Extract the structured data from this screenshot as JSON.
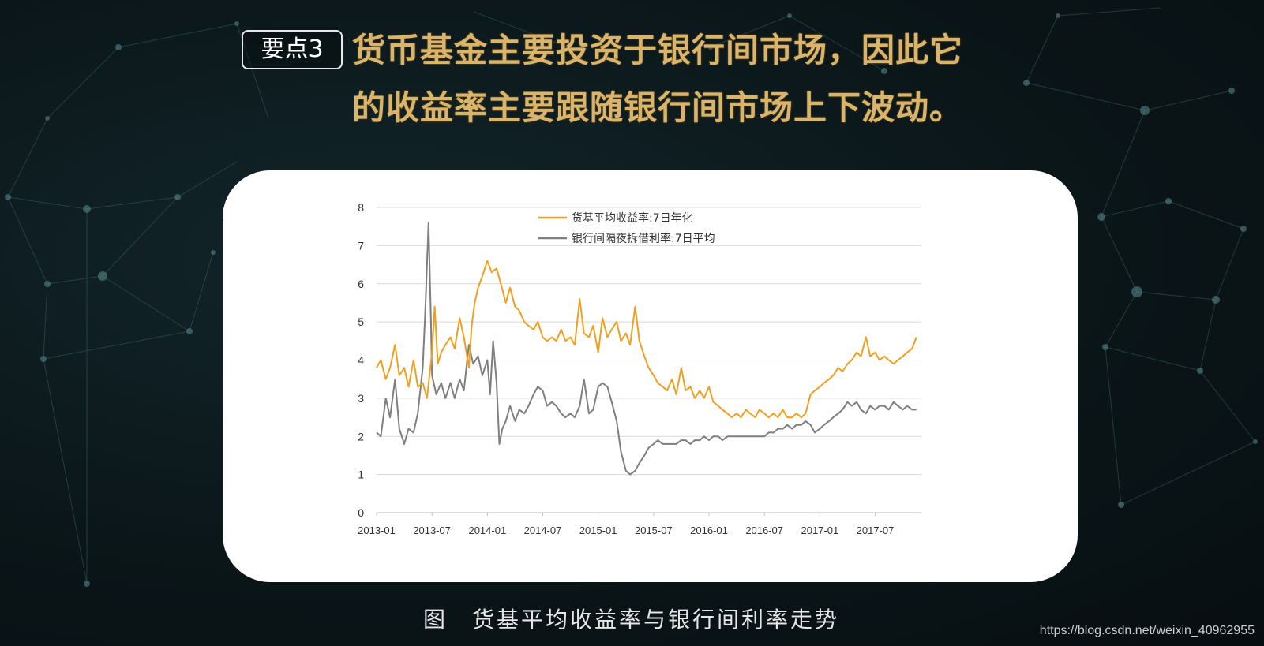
{
  "badge": "要点3",
  "headline": {
    "line1": "货币基金主要投资于银行间市场，因此它",
    "line2": "的收益率主要跟随银行间市场上下波动。"
  },
  "caption": "图　货基平均收益率与银行间利率走势",
  "watermark": "https://blog.csdn.net/weixin_40962955",
  "colors": {
    "headline": "#d9b46a",
    "series_fund": "#f0a020",
    "series_interbank": "#7f7f7f"
  },
  "chart_data": {
    "type": "line",
    "title": "",
    "xlabel": "",
    "ylabel": "",
    "ylim": [
      0,
      8
    ],
    "yticks": [
      "0",
      "1",
      "2",
      "3",
      "4",
      "5",
      "6",
      "7",
      "8"
    ],
    "xlim": [
      "2013-01",
      "2017-12"
    ],
    "xticks": [
      "2013-01",
      "2013-07",
      "2014-01",
      "2014-07",
      "2015-01",
      "2015-07",
      "2016-01",
      "2016-07",
      "2017-01",
      "2017-07"
    ],
    "grid": true,
    "legend": "top-center",
    "series": [
      {
        "name": "货基平均收益率:7日年化",
        "color": "#f0a020",
        "points": [
          [
            "2013-01",
            3.8
          ],
          [
            "2013-01-15",
            4.0
          ],
          [
            "2013-02",
            3.5
          ],
          [
            "2013-02-15",
            3.8
          ],
          [
            "2013-03",
            4.4
          ],
          [
            "2013-03-15",
            3.6
          ],
          [
            "2013-04",
            3.8
          ],
          [
            "2013-04-15",
            3.3
          ],
          [
            "2013-05",
            4.0
          ],
          [
            "2013-05-15",
            3.3
          ],
          [
            "2013-06",
            3.4
          ],
          [
            "2013-06-15",
            3.0
          ],
          [
            "2013-07",
            4.2
          ],
          [
            "2013-07-10",
            5.4
          ],
          [
            "2013-07-20",
            3.9
          ],
          [
            "2013-08",
            4.2
          ],
          [
            "2013-08-15",
            4.4
          ],
          [
            "2013-09",
            4.6
          ],
          [
            "2013-09-15",
            4.3
          ],
          [
            "2013-10",
            5.1
          ],
          [
            "2013-10-15",
            4.6
          ],
          [
            "2013-11",
            3.8
          ],
          [
            "2013-11-10",
            4.9
          ],
          [
            "2013-11-20",
            5.5
          ],
          [
            "2013-12",
            5.9
          ],
          [
            "2013-12-15",
            6.2
          ],
          [
            "2014-01",
            6.6
          ],
          [
            "2014-01-15",
            6.3
          ],
          [
            "2014-02",
            6.4
          ],
          [
            "2014-02-15",
            6.0
          ],
          [
            "2014-03",
            5.5
          ],
          [
            "2014-03-15",
            5.9
          ],
          [
            "2014-04",
            5.4
          ],
          [
            "2014-04-15",
            5.3
          ],
          [
            "2014-05",
            5.0
          ],
          [
            "2014-05-15",
            4.9
          ],
          [
            "2014-06",
            4.8
          ],
          [
            "2014-06-15",
            5.0
          ],
          [
            "2014-07",
            4.6
          ],
          [
            "2014-07-15",
            4.5
          ],
          [
            "2014-08",
            4.6
          ],
          [
            "2014-08-15",
            4.5
          ],
          [
            "2014-09",
            4.8
          ],
          [
            "2014-09-15",
            4.5
          ],
          [
            "2014-10",
            4.6
          ],
          [
            "2014-10-15",
            4.4
          ],
          [
            "2014-11",
            5.6
          ],
          [
            "2014-11-15",
            4.7
          ],
          [
            "2014-12",
            4.6
          ],
          [
            "2014-12-15",
            4.9
          ],
          [
            "2015-01",
            4.2
          ],
          [
            "2015-01-15",
            5.1
          ],
          [
            "2015-02",
            4.6
          ],
          [
            "2015-02-15",
            4.8
          ],
          [
            "2015-03",
            5.0
          ],
          [
            "2015-03-15",
            4.5
          ],
          [
            "2015-04",
            4.7
          ],
          [
            "2015-04-15",
            4.4
          ],
          [
            "2015-05",
            5.4
          ],
          [
            "2015-05-15",
            4.5
          ],
          [
            "2015-06",
            4.1
          ],
          [
            "2015-06-15",
            3.8
          ],
          [
            "2015-07",
            3.6
          ],
          [
            "2015-07-15",
            3.4
          ],
          [
            "2015-08",
            3.3
          ],
          [
            "2015-08-15",
            3.2
          ],
          [
            "2015-09",
            3.5
          ],
          [
            "2015-09-15",
            3.1
          ],
          [
            "2015-10",
            3.8
          ],
          [
            "2015-10-15",
            3.2
          ],
          [
            "2015-11",
            3.3
          ],
          [
            "2015-11-15",
            3.0
          ],
          [
            "2015-12",
            3.2
          ],
          [
            "2015-12-15",
            3.0
          ],
          [
            "2016-01",
            3.3
          ],
          [
            "2016-01-15",
            2.9
          ],
          [
            "2016-02",
            2.8
          ],
          [
            "2016-02-15",
            2.7
          ],
          [
            "2016-03",
            2.6
          ],
          [
            "2016-03-15",
            2.5
          ],
          [
            "2016-04",
            2.6
          ],
          [
            "2016-04-15",
            2.5
          ],
          [
            "2016-05",
            2.7
          ],
          [
            "2016-05-15",
            2.6
          ],
          [
            "2016-06",
            2.5
          ],
          [
            "2016-06-15",
            2.7
          ],
          [
            "2016-07",
            2.6
          ],
          [
            "2016-07-15",
            2.5
          ],
          [
            "2016-08",
            2.6
          ],
          [
            "2016-08-15",
            2.5
          ],
          [
            "2016-09",
            2.7
          ],
          [
            "2016-09-15",
            2.5
          ],
          [
            "2016-10",
            2.5
          ],
          [
            "2016-10-15",
            2.6
          ],
          [
            "2016-11",
            2.5
          ],
          [
            "2016-11-15",
            2.6
          ],
          [
            "2016-12",
            3.1
          ],
          [
            "2016-12-15",
            3.2
          ],
          [
            "2017-01",
            3.3
          ],
          [
            "2017-01-15",
            3.4
          ],
          [
            "2017-02",
            3.5
          ],
          [
            "2017-02-15",
            3.6
          ],
          [
            "2017-03",
            3.8
          ],
          [
            "2017-03-15",
            3.7
          ],
          [
            "2017-04",
            3.9
          ],
          [
            "2017-04-15",
            4.0
          ],
          [
            "2017-05",
            4.2
          ],
          [
            "2017-05-15",
            4.1
          ],
          [
            "2017-06",
            4.6
          ],
          [
            "2017-06-15",
            4.1
          ],
          [
            "2017-07",
            4.2
          ],
          [
            "2017-07-15",
            4.0
          ],
          [
            "2017-08",
            4.1
          ],
          [
            "2017-08-15",
            4.0
          ],
          [
            "2017-09",
            3.9
          ],
          [
            "2017-09-15",
            4.0
          ],
          [
            "2017-10",
            4.1
          ],
          [
            "2017-10-15",
            4.2
          ],
          [
            "2017-11",
            4.3
          ],
          [
            "2017-11-15",
            4.6
          ]
        ]
      },
      {
        "name": "银行间隔夜拆借利率:7日平均",
        "color": "#7f7f7f",
        "points": [
          [
            "2013-01",
            2.1
          ],
          [
            "2013-01-15",
            2.0
          ],
          [
            "2013-02",
            3.0
          ],
          [
            "2013-02-15",
            2.5
          ],
          [
            "2013-03",
            3.5
          ],
          [
            "2013-03-15",
            2.2
          ],
          [
            "2013-04",
            1.8
          ],
          [
            "2013-04-15",
            2.2
          ],
          [
            "2013-05",
            2.1
          ],
          [
            "2013-05-15",
            2.6
          ],
          [
            "2013-06",
            3.8
          ],
          [
            "2013-06-10",
            5.4
          ],
          [
            "2013-06-20",
            7.6
          ],
          [
            "2013-06-28",
            5.0
          ],
          [
            "2013-07",
            3.6
          ],
          [
            "2013-07-15",
            3.1
          ],
          [
            "2013-08",
            3.4
          ],
          [
            "2013-08-15",
            3.0
          ],
          [
            "2013-09",
            3.4
          ],
          [
            "2013-09-15",
            3.0
          ],
          [
            "2013-10",
            3.5
          ],
          [
            "2013-10-15",
            3.2
          ],
          [
            "2013-11",
            4.4
          ],
          [
            "2013-11-15",
            3.9
          ],
          [
            "2013-12",
            4.1
          ],
          [
            "2013-12-15",
            3.6
          ],
          [
            "2014-01",
            4.0
          ],
          [
            "2014-01-10",
            3.1
          ],
          [
            "2014-01-20",
            4.5
          ],
          [
            "2014-02",
            3.4
          ],
          [
            "2014-02-10",
            1.8
          ],
          [
            "2014-02-20",
            2.2
          ],
          [
            "2014-03",
            2.4
          ],
          [
            "2014-03-15",
            2.8
          ],
          [
            "2014-04",
            2.4
          ],
          [
            "2014-04-15",
            2.7
          ],
          [
            "2014-05",
            2.6
          ],
          [
            "2014-05-15",
            2.8
          ],
          [
            "2014-06",
            3.1
          ],
          [
            "2014-06-15",
            3.3
          ],
          [
            "2014-07",
            3.2
          ],
          [
            "2014-07-15",
            2.8
          ],
          [
            "2014-08",
            2.9
          ],
          [
            "2014-08-15",
            2.8
          ],
          [
            "2014-09",
            2.6
          ],
          [
            "2014-09-15",
            2.5
          ],
          [
            "2014-10",
            2.6
          ],
          [
            "2014-10-15",
            2.5
          ],
          [
            "2014-11",
            2.8
          ],
          [
            "2014-11-15",
            3.5
          ],
          [
            "2014-12",
            2.6
          ],
          [
            "2014-12-15",
            2.7
          ],
          [
            "2015-01",
            3.3
          ],
          [
            "2015-01-15",
            3.4
          ],
          [
            "2015-02",
            3.3
          ],
          [
            "2015-02-15",
            2.9
          ],
          [
            "2015-03",
            2.4
          ],
          [
            "2015-03-15",
            1.6
          ],
          [
            "2015-04",
            1.1
          ],
          [
            "2015-04-15",
            1.0
          ],
          [
            "2015-05",
            1.1
          ],
          [
            "2015-05-15",
            1.3
          ],
          [
            "2015-06",
            1.5
          ],
          [
            "2015-06-15",
            1.7
          ],
          [
            "2015-07",
            1.8
          ],
          [
            "2015-07-15",
            1.9
          ],
          [
            "2015-08",
            1.8
          ],
          [
            "2015-08-15",
            1.8
          ],
          [
            "2015-09",
            1.8
          ],
          [
            "2015-09-15",
            1.8
          ],
          [
            "2015-10",
            1.9
          ],
          [
            "2015-10-15",
            1.9
          ],
          [
            "2015-11",
            1.8
          ],
          [
            "2015-11-15",
            1.9
          ],
          [
            "2015-12",
            1.9
          ],
          [
            "2015-12-15",
            2.0
          ],
          [
            "2016-01",
            1.9
          ],
          [
            "2016-01-15",
            2.0
          ],
          [
            "2016-02",
            2.0
          ],
          [
            "2016-02-15",
            1.9
          ],
          [
            "2016-03",
            2.0
          ],
          [
            "2016-03-15",
            2.0
          ],
          [
            "2016-04",
            2.0
          ],
          [
            "2016-04-15",
            2.0
          ],
          [
            "2016-05",
            2.0
          ],
          [
            "2016-05-15",
            2.0
          ],
          [
            "2016-06",
            2.0
          ],
          [
            "2016-06-15",
            2.0
          ],
          [
            "2016-07",
            2.0
          ],
          [
            "2016-07-15",
            2.1
          ],
          [
            "2016-08",
            2.1
          ],
          [
            "2016-08-15",
            2.2
          ],
          [
            "2016-09",
            2.2
          ],
          [
            "2016-09-15",
            2.3
          ],
          [
            "2016-10",
            2.2
          ],
          [
            "2016-10-15",
            2.3
          ],
          [
            "2016-11",
            2.3
          ],
          [
            "2016-11-15",
            2.4
          ],
          [
            "2016-12",
            2.3
          ],
          [
            "2016-12-15",
            2.1
          ],
          [
            "2017-01",
            2.2
          ],
          [
            "2017-01-15",
            2.3
          ],
          [
            "2017-02",
            2.4
          ],
          [
            "2017-02-15",
            2.5
          ],
          [
            "2017-03",
            2.6
          ],
          [
            "2017-03-15",
            2.7
          ],
          [
            "2017-04",
            2.9
          ],
          [
            "2017-04-15",
            2.8
          ],
          [
            "2017-05",
            2.9
          ],
          [
            "2017-05-15",
            2.7
          ],
          [
            "2017-06",
            2.6
          ],
          [
            "2017-06-15",
            2.8
          ],
          [
            "2017-07",
            2.7
          ],
          [
            "2017-07-15",
            2.8
          ],
          [
            "2017-08",
            2.8
          ],
          [
            "2017-08-15",
            2.7
          ],
          [
            "2017-09",
            2.9
          ],
          [
            "2017-09-15",
            2.8
          ],
          [
            "2017-10",
            2.7
          ],
          [
            "2017-10-15",
            2.8
          ],
          [
            "2017-11",
            2.7
          ],
          [
            "2017-11-15",
            2.7
          ]
        ]
      }
    ]
  }
}
